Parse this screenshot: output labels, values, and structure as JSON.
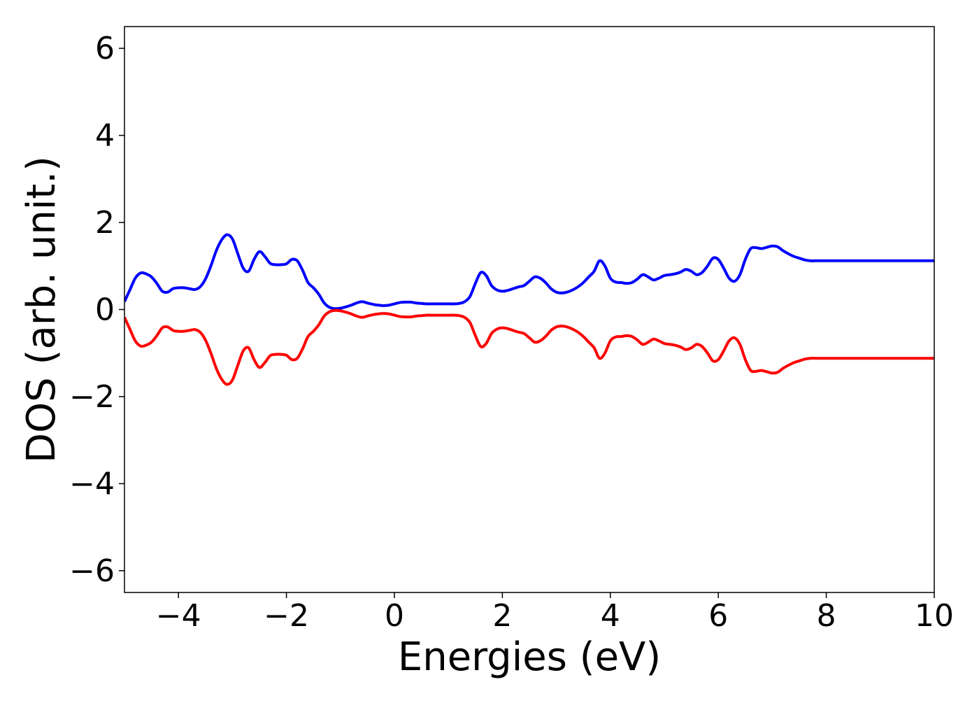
{
  "chart_data": {
    "type": "line",
    "title": "",
    "xlabel": "Energies (eV)",
    "ylabel": "DOS (arb. unit.)",
    "xlim": [
      -5,
      10
    ],
    "ylim": [
      -6.5,
      6.5
    ],
    "grid": false,
    "legend": "none",
    "xticks": [
      -4,
      -2,
      0,
      2,
      4,
      6,
      8,
      10
    ],
    "yticks": [
      -6,
      -4,
      -2,
      0,
      2,
      4,
      6
    ],
    "xtick_labels": [
      "−4",
      "−2",
      "0",
      "2",
      "4",
      "6",
      "8",
      "10"
    ],
    "ytick_labels": [
      "−6",
      "−4",
      "−2",
      "0",
      "2",
      "4",
      "6"
    ],
    "x": [
      -5.0,
      -4.9,
      -4.8,
      -4.7,
      -4.6,
      -4.5,
      -4.4,
      -4.3,
      -4.2,
      -4.1,
      -4.0,
      -3.9,
      -3.8,
      -3.7,
      -3.6,
      -3.5,
      -3.4,
      -3.3,
      -3.2,
      -3.1,
      -3.0,
      -2.9,
      -2.8,
      -2.7,
      -2.6,
      -2.5,
      -2.4,
      -2.3,
      -2.2,
      -2.1,
      -2.0,
      -1.9,
      -1.8,
      -1.7,
      -1.6,
      -1.5,
      -1.4,
      -1.3,
      -1.2,
      -1.1,
      -1.0,
      -0.9,
      -0.8,
      -0.7,
      -0.6,
      -0.5,
      -0.4,
      -0.3,
      -0.2,
      -0.1,
      0.0,
      0.1,
      0.2,
      0.3,
      0.4,
      0.5,
      0.6,
      0.7,
      0.8,
      0.9,
      1.0,
      1.1,
      1.2,
      1.3,
      1.4,
      1.5,
      1.6,
      1.7,
      1.8,
      1.9,
      2.0,
      2.1,
      2.2,
      2.3,
      2.4,
      2.5,
      2.6,
      2.7,
      2.8,
      2.9,
      3.0,
      3.1,
      3.2,
      3.3,
      3.4,
      3.5,
      3.6,
      3.7,
      3.8,
      3.9,
      4.0,
      4.1,
      4.2,
      4.3,
      4.4,
      4.5,
      4.6,
      4.7,
      4.8,
      4.9,
      5.0,
      5.1,
      5.2,
      5.3,
      5.4,
      5.5,
      5.6,
      5.7,
      5.8,
      5.9,
      6.0,
      6.1,
      6.2,
      6.3,
      6.4,
      6.5,
      6.6,
      6.7,
      6.8,
      6.9,
      7.0,
      7.1,
      7.2,
      7.3,
      7.4,
      7.5,
      7.6,
      7.7,
      7.8,
      7.9,
      8.0,
      8.1,
      8.2,
      8.3,
      8.4,
      8.5,
      8.6,
      8.7,
      8.8,
      8.9,
      9.0,
      9.1,
      9.2,
      9.3,
      9.4,
      9.5,
      9.6,
      9.7,
      9.8,
      9.9,
      10.0
    ],
    "series": [
      {
        "color": "#0000ff",
        "values": [
          0.18,
          0.45,
          0.72,
          0.84,
          0.82,
          0.75,
          0.6,
          0.42,
          0.4,
          0.48,
          0.5,
          0.5,
          0.48,
          0.46,
          0.52,
          0.7,
          1.0,
          1.35,
          1.6,
          1.72,
          1.62,
          1.28,
          0.95,
          0.88,
          1.15,
          1.33,
          1.22,
          1.06,
          1.03,
          1.03,
          1.05,
          1.15,
          1.12,
          0.9,
          0.62,
          0.5,
          0.35,
          0.15,
          0.05,
          0.02,
          0.03,
          0.06,
          0.1,
          0.15,
          0.18,
          0.15,
          0.12,
          0.1,
          0.09,
          0.1,
          0.13,
          0.16,
          0.17,
          0.17,
          0.15,
          0.14,
          0.13,
          0.13,
          0.13,
          0.13,
          0.13,
          0.13,
          0.14,
          0.18,
          0.3,
          0.6,
          0.85,
          0.78,
          0.55,
          0.45,
          0.42,
          0.44,
          0.48,
          0.52,
          0.55,
          0.65,
          0.75,
          0.72,
          0.62,
          0.48,
          0.4,
          0.38,
          0.4,
          0.45,
          0.52,
          0.62,
          0.75,
          0.88,
          1.12,
          1.0,
          0.72,
          0.63,
          0.62,
          0.6,
          0.62,
          0.7,
          0.8,
          0.75,
          0.68,
          0.72,
          0.78,
          0.8,
          0.82,
          0.86,
          0.92,
          0.88,
          0.8,
          0.85,
          1.0,
          1.18,
          1.15,
          0.95,
          0.72,
          0.65,
          0.8,
          1.15,
          1.4,
          1.42,
          1.4,
          1.43,
          1.46,
          1.44,
          1.35,
          1.28,
          1.22,
          1.18,
          1.14,
          1.12,
          1.12,
          1.12,
          1.12,
          1.12,
          1.12,
          1.12,
          1.12,
          1.12,
          1.12,
          1.12,
          1.12,
          1.12,
          1.12,
          1.12,
          1.12,
          1.12,
          1.12,
          1.12,
          1.12,
          1.12,
          1.12,
          1.12,
          1.12
        ]
      },
      {
        "color": "#ff0000",
        "values": [
          -0.18,
          -0.45,
          -0.72,
          -0.84,
          -0.82,
          -0.75,
          -0.6,
          -0.42,
          -0.4,
          -0.48,
          -0.5,
          -0.5,
          -0.48,
          -0.46,
          -0.52,
          -0.7,
          -1.0,
          -1.35,
          -1.6,
          -1.72,
          -1.62,
          -1.28,
          -0.95,
          -0.88,
          -1.15,
          -1.33,
          -1.22,
          -1.06,
          -1.03,
          -1.03,
          -1.05,
          -1.15,
          -1.12,
          -0.9,
          -0.62,
          -0.5,
          -0.35,
          -0.15,
          -0.05,
          -0.02,
          -0.03,
          -0.06,
          -0.1,
          -0.15,
          -0.18,
          -0.15,
          -0.12,
          -0.1,
          -0.09,
          -0.1,
          -0.13,
          -0.16,
          -0.17,
          -0.17,
          -0.15,
          -0.14,
          -0.13,
          -0.13,
          -0.13,
          -0.13,
          -0.13,
          -0.13,
          -0.14,
          -0.18,
          -0.3,
          -0.6,
          -0.85,
          -0.78,
          -0.55,
          -0.45,
          -0.42,
          -0.44,
          -0.48,
          -0.52,
          -0.55,
          -0.65,
          -0.75,
          -0.72,
          -0.62,
          -0.48,
          -0.4,
          -0.38,
          -0.4,
          -0.45,
          -0.52,
          -0.62,
          -0.75,
          -0.88,
          -1.12,
          -1.0,
          -0.72,
          -0.63,
          -0.62,
          -0.6,
          -0.62,
          -0.7,
          -0.8,
          -0.75,
          -0.68,
          -0.72,
          -0.78,
          -0.8,
          -0.82,
          -0.86,
          -0.92,
          -0.88,
          -0.8,
          -0.85,
          -1.0,
          -1.18,
          -1.15,
          -0.95,
          -0.72,
          -0.65,
          -0.8,
          -1.15,
          -1.4,
          -1.42,
          -1.4,
          -1.43,
          -1.46,
          -1.44,
          -1.35,
          -1.28,
          -1.22,
          -1.18,
          -1.14,
          -1.12,
          -1.12,
          -1.12,
          -1.12,
          -1.12,
          -1.12,
          -1.12,
          -1.12,
          -1.12,
          -1.12,
          -1.12,
          -1.12,
          -1.12,
          -1.12,
          -1.12,
          -1.12,
          -1.12,
          -1.12,
          -1.12,
          -1.12,
          -1.12,
          -1.12,
          -1.12,
          -1.12
        ]
      }
    ]
  }
}
